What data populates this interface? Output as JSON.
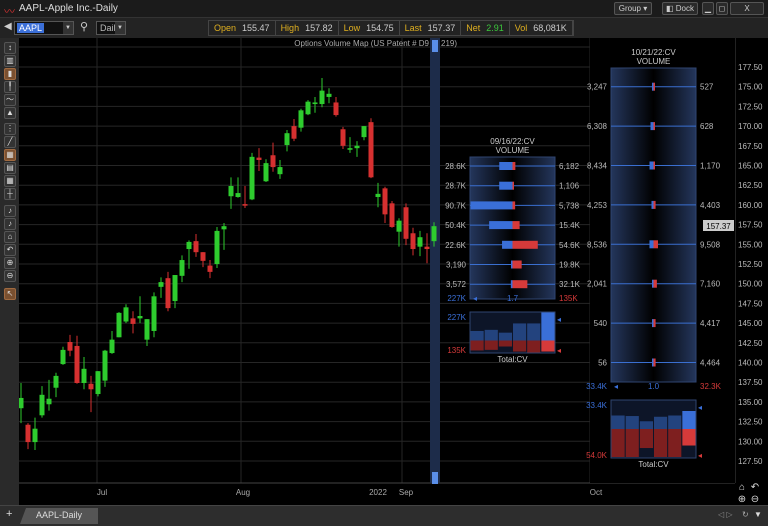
{
  "window": {
    "title": "AAPL-Apple Inc.-Daily",
    "group_label": "Group",
    "dock_label": "Dock",
    "minimize": "▁",
    "maximize": "◻",
    "close": "X"
  },
  "toolbar": {
    "symbol": "AAPL",
    "interval": "Daily",
    "stats": [
      {
        "label": "Open",
        "value": "155.47"
      },
      {
        "label": "High",
        "value": "157.82"
      },
      {
        "label": "Low",
        "value": "154.75"
      },
      {
        "label": "Last",
        "value": "157.37"
      },
      {
        "label": "Net",
        "value": "2.91",
        "color": "#3cc83c"
      },
      {
        "label": "Vol",
        "value": "68,081K"
      }
    ]
  },
  "left_tools": [
    "bar-chart",
    "candle-chart",
    "candle-chart-2",
    "ohlc",
    "line",
    "area",
    "crosshair",
    "trendline",
    "grid",
    "fib",
    "table",
    "horizontal-line",
    "annotation",
    "note",
    "home",
    "undo",
    "zoom-in",
    "zoom-out",
    "pointer"
  ],
  "chart": {
    "overlay_title": "Options Volume Map (US Patent # D9",
    "overlay_title_end": "219)",
    "colors": {
      "up": "#2ecc2e",
      "down": "#d63030",
      "calls": "#3a6fd8",
      "puts": "#d63a3a"
    },
    "last_price": "157.37",
    "price_ticks": [
      "177.50",
      "175.00",
      "172.50",
      "170.00",
      "167.50",
      "165.00",
      "162.50",
      "160.00",
      "157.50",
      "155.00",
      "152.50",
      "150.00",
      "147.50",
      "145.00",
      "142.50",
      "140.00",
      "137.50",
      "135.00",
      "132.50",
      "130.00",
      "127.50"
    ],
    "price_range": [
      127.5,
      177.5
    ],
    "date_labels": [
      "Jul",
      "Aug",
      "2022",
      "Sep",
      "Oct"
    ],
    "candles": [
      [
        134.2,
        137.4,
        132.3,
        135.5
      ],
      [
        132.1,
        132.3,
        129.0,
        129.9
      ],
      [
        129.9,
        133.0,
        128.9,
        131.6
      ],
      [
        133.3,
        137.0,
        133.0,
        135.9
      ],
      [
        134.7,
        137.8,
        133.9,
        135.4
      ],
      [
        136.8,
        138.7,
        135.6,
        138.3
      ],
      [
        139.8,
        142.0,
        139.7,
        141.6
      ],
      [
        142.6,
        143.5,
        140.8,
        141.5
      ],
      [
        142.1,
        143.4,
        137.3,
        137.4
      ],
      [
        137.4,
        140.7,
        136.6,
        139.2
      ],
      [
        137.3,
        138.3,
        133.7,
        136.6
      ],
      [
        136.0,
        138.9,
        135.7,
        138.9
      ],
      [
        137.7,
        141.6,
        136.9,
        141.5
      ],
      [
        141.2,
        144.0,
        141.1,
        142.9
      ],
      [
        143.2,
        146.4,
        143.2,
        146.3
      ],
      [
        145.2,
        147.4,
        145.0,
        147.0
      ],
      [
        145.6,
        146.5,
        143.7,
        144.9
      ],
      [
        145.6,
        148.4,
        145.0,
        145.9
      ],
      [
        142.9,
        145.5,
        142.1,
        145.5
      ],
      [
        144.0,
        148.9,
        143.2,
        148.4
      ],
      [
        149.6,
        150.8,
        148.2,
        150.2
      ],
      [
        150.7,
        151.5,
        146.5,
        146.9
      ],
      [
        147.8,
        151.1,
        146.9,
        151.1
      ],
      [
        151.0,
        153.6,
        150.2,
        153.0
      ],
      [
        154.4,
        155.5,
        151.9,
        155.3
      ],
      [
        155.4,
        156.3,
        153.4,
        154.0
      ],
      [
        154.0,
        154.0,
        152.1,
        152.9
      ],
      [
        152.3,
        153.0,
        150.7,
        151.5
      ],
      [
        152.5,
        157.2,
        152.0,
        156.7
      ],
      [
        156.9,
        157.7,
        154.3,
        157.3
      ],
      [
        161.1,
        163.5,
        159.5,
        162.4
      ],
      [
        161.0,
        163.5,
        160.9,
        161.5
      ],
      [
        160.1,
        162.4,
        159.6,
        159.9
      ],
      [
        160.7,
        166.6,
        160.6,
        166.1
      ],
      [
        166.0,
        167.2,
        164.3,
        165.7
      ],
      [
        163.0,
        165.8,
        162.9,
        165.3
      ],
      [
        166.3,
        167.9,
        164.2,
        164.8
      ],
      [
        163.9,
        165.7,
        163.3,
        164.8
      ],
      [
        167.6,
        169.5,
        166.8,
        169.1
      ],
      [
        170.0,
        170.9,
        168.1,
        168.4
      ],
      [
        169.8,
        172.2,
        169.3,
        172.0
      ],
      [
        171.5,
        173.3,
        171.4,
        173.1
      ],
      [
        172.8,
        173.7,
        171.7,
        173.0
      ],
      [
        172.8,
        176.1,
        172.4,
        174.5
      ],
      [
        173.7,
        174.8,
        172.9,
        174.1
      ],
      [
        173.0,
        173.7,
        171.2,
        171.4
      ],
      [
        169.6,
        169.9,
        167.1,
        167.5
      ],
      [
        167.0,
        168.6,
        166.6,
        167.2
      ],
      [
        167.2,
        168.1,
        166.1,
        167.5
      ],
      [
        168.6,
        170.0,
        168.2,
        170.0
      ],
      [
        170.5,
        171.0,
        163.4,
        163.5
      ],
      [
        161.0,
        162.8,
        159.7,
        161.4
      ],
      [
        162.1,
        162.3,
        157.7,
        158.8
      ],
      [
        160.2,
        160.5,
        157.1,
        157.2
      ],
      [
        156.6,
        158.3,
        154.7,
        158.0
      ],
      [
        159.7,
        160.2,
        154.9,
        155.7
      ],
      [
        156.4,
        157.1,
        153.6,
        154.4
      ],
      [
        154.7,
        156.7,
        153.5,
        155.9
      ],
      [
        154.7,
        156.4,
        152.6,
        154.4
      ],
      [
        155.4,
        157.8,
        154.7,
        157.3
      ]
    ]
  },
  "option_maps": [
    {
      "expiry": "09/16/22:CV",
      "header": "VOLUME",
      "rows": [
        {
          "calls": "28.6K",
          "puts": "6,182"
        },
        {
          "calls": "28.7K",
          "puts": "1,106"
        },
        {
          "calls": "90.7K",
          "puts": "5,738"
        },
        {
          "calls": "50.4K",
          "puts": "15.4K"
        },
        {
          "calls": "22.6K",
          "puts": "54.6K"
        },
        {
          "calls": "3,190",
          "puts": "19.8K"
        },
        {
          "calls": "3,572",
          "puts": "32.1K"
        }
      ],
      "total_calls": "227K",
      "ratio": "1.7",
      "total_puts": "135K",
      "history_calls_label": "227K",
      "history_puts_label": "135K",
      "history_label": "Total:CV",
      "history_calls": [
        0.34,
        0.38,
        0.28,
        0.61,
        0.61,
        1.0
      ],
      "history_puts": [
        0.83,
        0.78,
        0.5,
        0.92,
        1.0,
        0.92
      ]
    },
    {
      "expiry": "10/21/22:CV",
      "header": "VOLUME",
      "rows": [
        {
          "strike": 175,
          "calls": "3,247",
          "puts": "527"
        },
        {
          "strike": 170,
          "calls": "6,308",
          "puts": "628"
        },
        {
          "strike": 165,
          "calls": "8,434",
          "puts": "1,170"
        },
        {
          "strike": 160,
          "calls": "4,253",
          "puts": "4,403"
        },
        {
          "strike": 155,
          "calls": "8,536",
          "puts": "9,508"
        },
        {
          "strike": 150,
          "calls": "2,041",
          "puts": "7,160"
        },
        {
          "strike": 145,
          "calls": "540",
          "puts": "4,417"
        },
        {
          "strike": 140,
          "calls": "56",
          "puts": "4,464"
        }
      ],
      "total_calls": "33.4K",
      "ratio": "1.0",
      "total_puts": "32.3K",
      "history_calls_label": "33.4K",
      "history_puts_label": "54.0K",
      "history_label": "Total:CV",
      "history_calls": [
        0.75,
        0.72,
        0.43,
        0.68,
        0.75,
        1.0
      ],
      "history_puts": [
        1.0,
        1.0,
        0.68,
        1.0,
        1.0,
        0.59
      ]
    }
  ],
  "bottom": {
    "add_tab": "+",
    "tab_label": "AAPL-Daily"
  }
}
